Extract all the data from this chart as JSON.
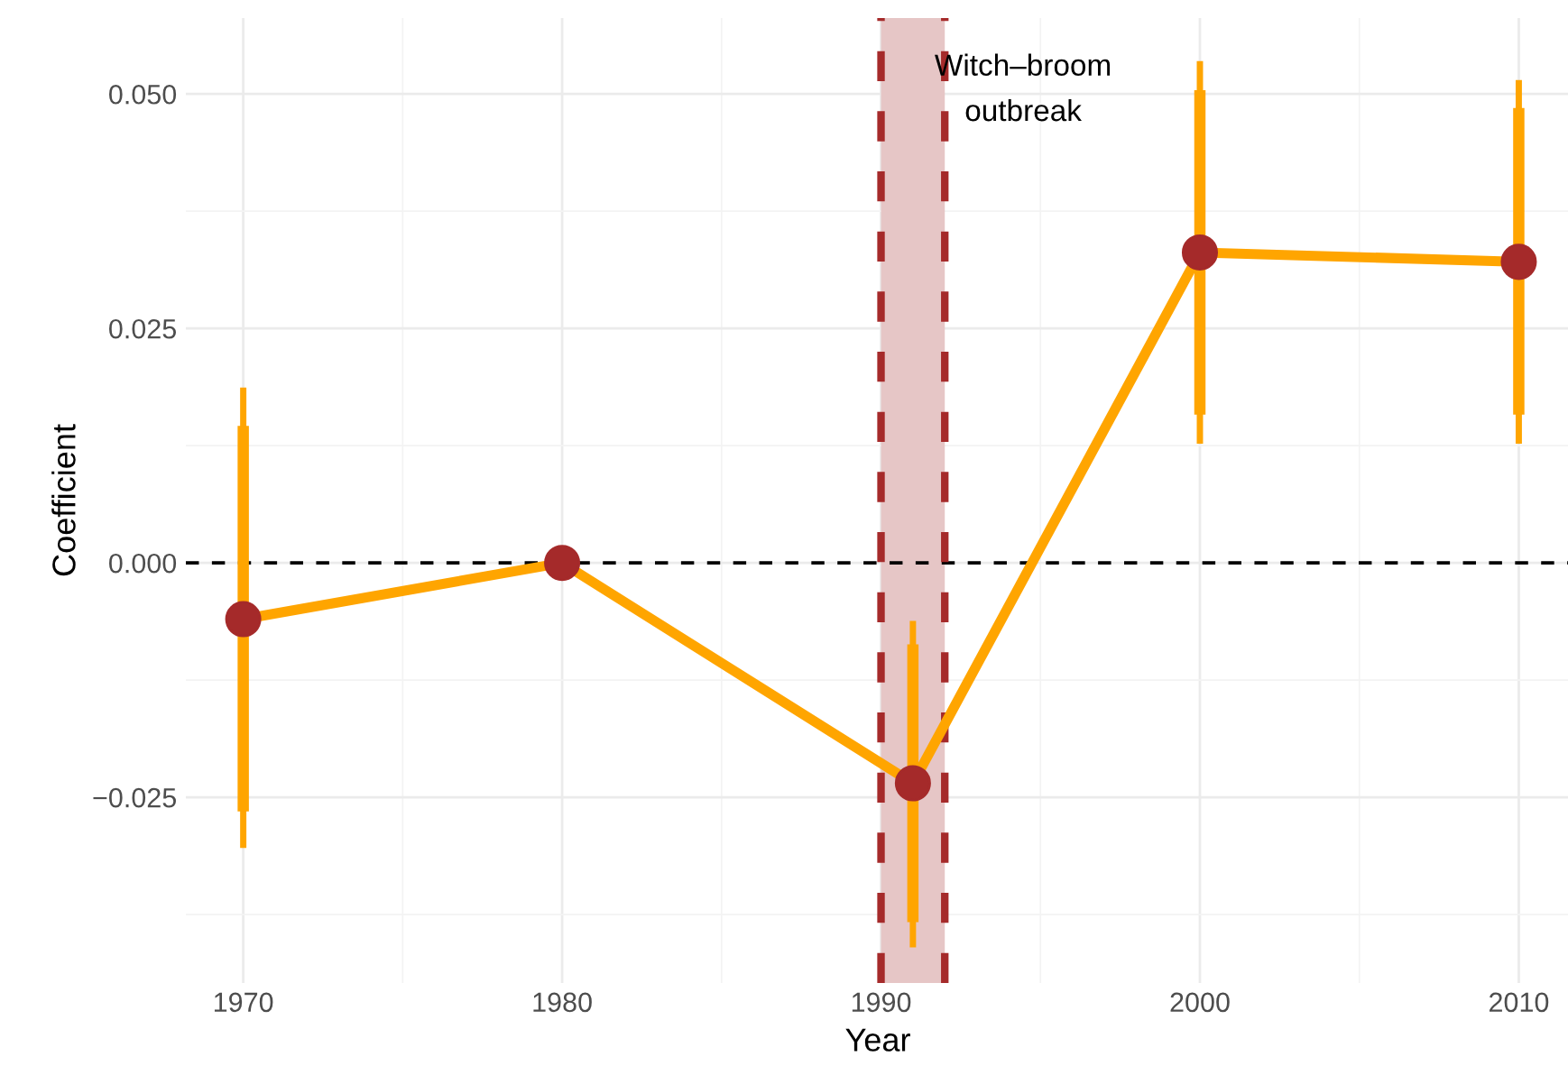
{
  "chart_data": {
    "type": "line",
    "xlabel": "Year",
    "ylabel": "Coefficient",
    "x": [
      1970,
      1980,
      1991,
      2000,
      2010
    ],
    "series": [
      {
        "color": "#ffa500",
        "values": [
          -0.006,
          0.0,
          -0.0235,
          0.0331,
          0.0321
        ],
        "errors": [
          [
            -0.0304,
            0.0187
          ],
          null,
          [
            -0.041,
            -0.0062
          ],
          [
            0.0127,
            0.0535
          ],
          [
            0.0127,
            0.0515
          ]
        ]
      },
      {
        "type": "scatter",
        "color": "#a52a2a",
        "values": [
          -0.006,
          0.0,
          -0.0235,
          0.0331,
          0.0321
        ],
        "errors": [
          [
            -0.0265,
            0.0146
          ],
          null,
          [
            -0.0383,
            -0.0087
          ],
          [
            0.0158,
            0.0504
          ],
          [
            0.0158,
            0.0485
          ]
        ]
      }
    ],
    "xlim": [
      1968.2,
      2011.6
    ],
    "ylim": [
      -0.0448,
      0.0581
    ],
    "xticks": [
      1970,
      1980,
      1990,
      2000,
      2010
    ],
    "yticks": [
      {
        "value": -0.025,
        "label": "−0.025"
      },
      {
        "value": 0.0,
        "label": "0.000"
      },
      {
        "value": 0.025,
        "label": "0.025"
      },
      {
        "value": 0.05,
        "label": "0.050"
      }
    ],
    "ref_lines": [
      {
        "axis": "y",
        "value": 0,
        "color": "#000000",
        "line_style": "dashed"
      },
      {
        "axis": "x",
        "value": 1990,
        "color": "#a52a2a",
        "line_style": "dashed"
      },
      {
        "axis": "x",
        "value": 1992,
        "color": "#a52a2a",
        "line_style": "dashed"
      }
    ],
    "bands": [
      {
        "axis": "x",
        "from": 1990,
        "to": 1992,
        "color": "#e6c6c6"
      }
    ],
    "annotations": [
      "Witch–broom\noutbreak"
    ],
    "grid": true,
    "legend": false
  }
}
